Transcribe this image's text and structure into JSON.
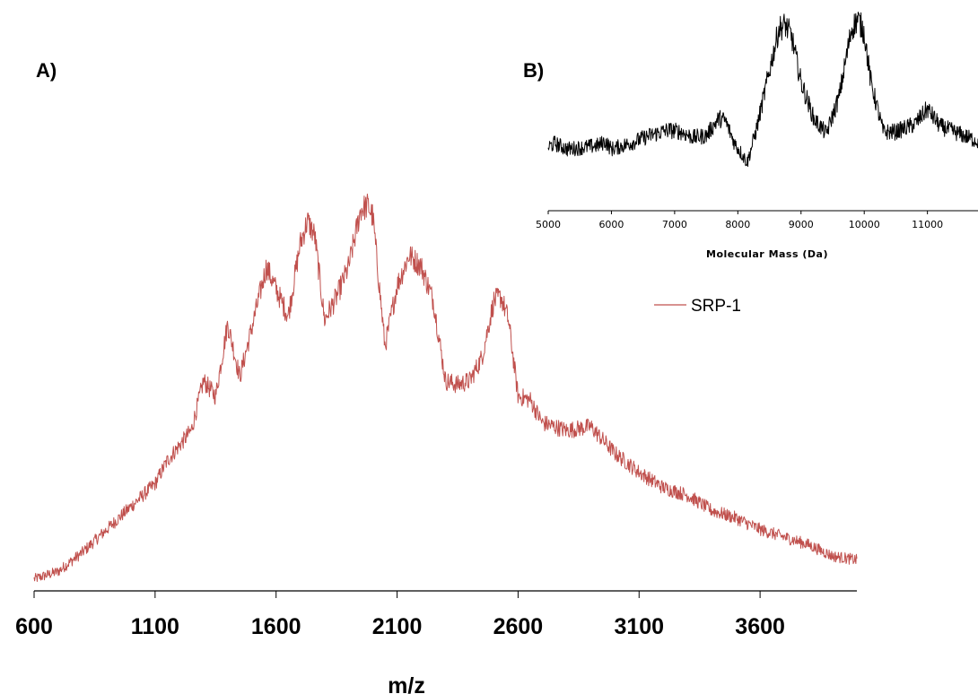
{
  "colors": {
    "seriesA": "#c0504d",
    "seriesB": "#000000",
    "axis": "#000000"
  },
  "chart_data": [
    {
      "type": "line",
      "panel_label": "A)",
      "xlabel": "m/z",
      "ylabel": "",
      "xlim": [
        600,
        4000
      ],
      "ylim": [
        0,
        1
      ],
      "ticks": [
        600,
        1100,
        1600,
        2100,
        2600,
        3100,
        3600
      ],
      "tick_labels": [
        "600",
        "1100",
        "1600",
        "2100",
        "2600",
        "3100",
        "3600"
      ],
      "grid": false,
      "legend": {
        "position": "upper-right",
        "entries": [
          "SRP-1"
        ]
      },
      "series": [
        {
          "name": "SRP-1",
          "x": [
            600,
            700,
            800,
            900,
            1000,
            1100,
            1150,
            1200,
            1250,
            1300,
            1350,
            1400,
            1450,
            1500,
            1560,
            1600,
            1650,
            1700,
            1730,
            1760,
            1800,
            1850,
            1900,
            1950,
            1980,
            2000,
            2050,
            2100,
            2150,
            2200,
            2250,
            2300,
            2350,
            2400,
            2450,
            2500,
            2530,
            2560,
            2600,
            2650,
            2700,
            2800,
            2900,
            3000,
            3100,
            3200,
            3300,
            3400,
            3500,
            3600,
            3700,
            3800,
            3900,
            4000
          ],
          "y": [
            0.01,
            0.03,
            0.08,
            0.14,
            0.2,
            0.26,
            0.32,
            0.36,
            0.4,
            0.53,
            0.49,
            0.68,
            0.54,
            0.67,
            0.83,
            0.77,
            0.7,
            0.89,
            0.95,
            0.91,
            0.69,
            0.75,
            0.83,
            0.98,
            0.99,
            0.96,
            0.62,
            0.78,
            0.86,
            0.83,
            0.74,
            0.53,
            0.52,
            0.53,
            0.59,
            0.74,
            0.75,
            0.69,
            0.49,
            0.48,
            0.42,
            0.4,
            0.41,
            0.34,
            0.29,
            0.25,
            0.23,
            0.19,
            0.17,
            0.14,
            0.12,
            0.1,
            0.07,
            0.06
          ]
        }
      ]
    },
    {
      "type": "line",
      "panel_label": "B)",
      "xlabel": "Molecular Mass (Da)",
      "ylabel": "",
      "xlim": [
        5000,
        11800
      ],
      "ylim": [
        0,
        1
      ],
      "ticks": [
        5000,
        6000,
        7000,
        8000,
        9000,
        10000,
        11000
      ],
      "tick_labels": [
        "5000",
        "6000",
        "7000",
        "8000",
        "9000",
        "10000",
        "11000"
      ],
      "grid": false,
      "series": [
        {
          "name": "",
          "x": [
            5000,
            5100,
            5300,
            5600,
            5800,
            5900,
            6000,
            6300,
            6600,
            6900,
            7100,
            7300,
            7500,
            7700,
            7800,
            7950,
            8050,
            8150,
            8300,
            8500,
            8650,
            8750,
            8850,
            9000,
            9200,
            9400,
            9600,
            9800,
            9900,
            10000,
            10100,
            10300,
            10500,
            10800,
            11000,
            11200,
            11500,
            11800
          ],
          "y": [
            0.3,
            0.32,
            0.29,
            0.3,
            0.31,
            0.33,
            0.29,
            0.32,
            0.36,
            0.39,
            0.38,
            0.35,
            0.36,
            0.45,
            0.44,
            0.32,
            0.27,
            0.22,
            0.4,
            0.7,
            0.92,
            0.94,
            0.88,
            0.64,
            0.45,
            0.37,
            0.56,
            0.92,
            0.97,
            0.9,
            0.65,
            0.38,
            0.38,
            0.42,
            0.5,
            0.41,
            0.37,
            0.33
          ]
        }
      ]
    }
  ]
}
